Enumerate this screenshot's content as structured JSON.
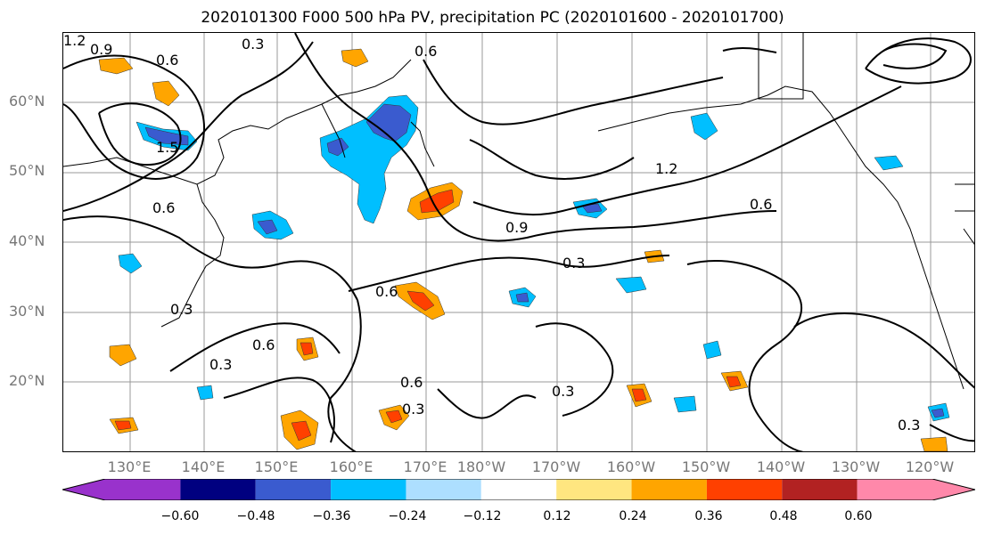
{
  "title": "2020101300 F000 500 hPa PV, precipitation PC (2020101600 - 2020101700)",
  "lat_labels": [
    "60°N",
    "50°N",
    "40°N",
    "30°N",
    "20°N"
  ],
  "lon_labels": [
    "130°E",
    "140°E",
    "150°E",
    "160°E",
    "170°E",
    "180°W",
    "170°W",
    "160°W",
    "150°W",
    "140°W",
    "130°W",
    "120°W"
  ],
  "colorbar": {
    "ticks": [
      "−0.60",
      "−0.48",
      "−0.36",
      "−0.24",
      "−0.12",
      "0.12",
      "0.24",
      "0.36",
      "0.48",
      "0.60"
    ],
    "colors": [
      "#9932CC",
      "#000080",
      "#3A5BCF",
      "#00BFFF",
      "#ADDFFF",
      "#FFFFFF",
      "#FFE680",
      "#FFA500",
      "#FF4000",
      "#B22222",
      "#FF88AA"
    ]
  },
  "contour_labels": [
    "0.3",
    "0.6",
    "0.9",
    "1.2",
    "1.5"
  ],
  "colors": {
    "grid": "#999999",
    "contour": "#000000",
    "axis_text": "#777777"
  }
}
